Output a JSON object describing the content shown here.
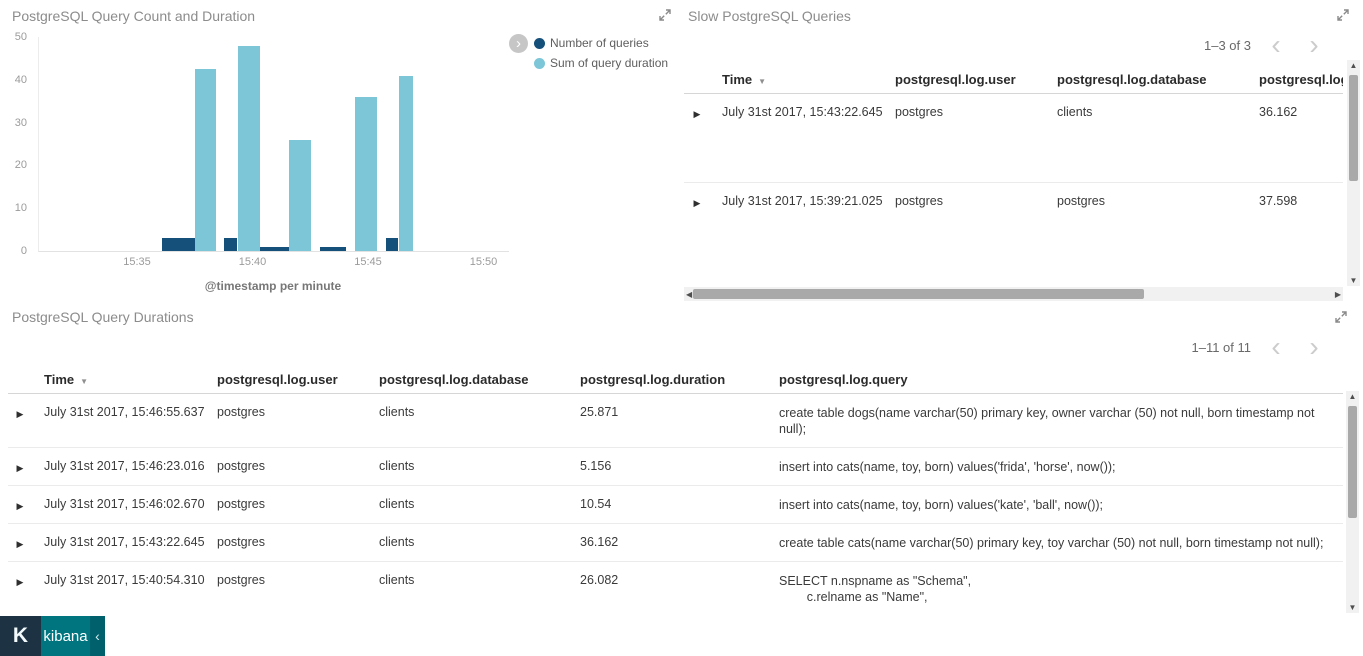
{
  "icons": {
    "legend_toggle": "›",
    "prev": "‹",
    "next": "›",
    "sort_desc": "▼",
    "row_expand": "▶",
    "scroll_up": "▲",
    "scroll_down": "▼",
    "scroll_left": "◀",
    "scroll_right": "▶",
    "collapse": "‹"
  },
  "chart_data": {
    "type": "bar",
    "title": "PostgreSQL Query Count and Duration",
    "xlabel": "@timestamp per minute",
    "x_ticks": [
      "15:35",
      "15:40",
      "15:45",
      "15:50"
    ],
    "y_ticks": [
      0,
      10,
      20,
      30,
      40,
      50
    ],
    "ylim": [
      0,
      50
    ],
    "legend_position": "right",
    "series": [
      {
        "name": "Number of queries",
        "color": "#15507a",
        "points": [
          {
            "t": "15:36",
            "v": 3
          },
          {
            "t": "15:39",
            "v": 3
          },
          {
            "t": "15:41",
            "v": 1
          },
          {
            "t": "15:43",
            "v": 1
          },
          {
            "t": "15:46",
            "v": 3
          }
        ]
      },
      {
        "name": "Sum of query duration",
        "color": "#7cc6d8",
        "points": [
          {
            "t": "15:38",
            "v": 42.5
          },
          {
            "t": "15:40",
            "v": 48
          },
          {
            "t": "15:42",
            "v": 26
          },
          {
            "t": "15:45",
            "v": 36
          },
          {
            "t": "15:46",
            "v": 41
          }
        ]
      }
    ],
    "bars": [
      {
        "s": 0,
        "m": 1.04,
        "w": 1.56,
        "v": 3
      },
      {
        "s": 1,
        "m": 2.45,
        "w": 0.95,
        "v": 42.5
      },
      {
        "s": 0,
        "m": 3.72,
        "w": 0.56,
        "v": 3
      },
      {
        "s": 1,
        "m": 4.33,
        "w": 0.95,
        "v": 48
      },
      {
        "s": 0,
        "m": 5.28,
        "w": 1.35,
        "v": 1
      },
      {
        "s": 1,
        "m": 6.53,
        "w": 0.95,
        "v": 26
      },
      {
        "s": 0,
        "m": 7.88,
        "w": 1.12,
        "v": 1
      },
      {
        "s": 1,
        "m": 9.4,
        "w": 0.95,
        "v": 36
      },
      {
        "s": 0,
        "m": 10.74,
        "w": 0.52,
        "v": 3
      },
      {
        "s": 1,
        "m": 11.28,
        "w": 0.62,
        "v": 41
      }
    ]
  },
  "panels": {
    "slow_queries": {
      "title": "Slow PostgreSQL Queries",
      "pagination": "1–3 of 3",
      "columns": {
        "time": "Time",
        "user": "postgresql.log.user",
        "database": "postgresql.log.database",
        "duration": "postgresql.log.duration"
      },
      "rows": [
        {
          "time": "July 31st 2017, 15:43:22.645",
          "user": "postgres",
          "database": "clients",
          "duration": "36.162"
        },
        {
          "time": "July 31st 2017, 15:39:21.025",
          "user": "postgres",
          "database": "postgres",
          "duration": "37.598"
        }
      ]
    },
    "durations": {
      "title": "PostgreSQL Query Durations",
      "pagination": "1–11 of 11",
      "columns": {
        "time": "Time",
        "user": "postgresql.log.user",
        "database": "postgresql.log.database",
        "duration": "postgresql.log.duration",
        "query": "postgresql.log.query"
      },
      "rows": [
        {
          "time": "July 31st 2017, 15:46:55.637",
          "user": "postgres",
          "database": "clients",
          "duration": "25.871",
          "query": "create table dogs(name varchar(50) primary key, owner varchar (50) not null, born timestamp not\nnull);"
        },
        {
          "time": "July 31st 2017, 15:46:23.016",
          "user": "postgres",
          "database": "clients",
          "duration": "5.156",
          "query": "insert into cats(name, toy, born) values('frida', 'horse', now());"
        },
        {
          "time": "July 31st 2017, 15:46:02.670",
          "user": "postgres",
          "database": "clients",
          "duration": "10.54",
          "query": "insert into cats(name, toy, born) values('kate', 'ball', now());"
        },
        {
          "time": "July 31st 2017, 15:43:22.645",
          "user": "postgres",
          "database": "clients",
          "duration": "36.162",
          "query": "create table cats(name varchar(50) primary key, toy varchar (50) not null, born timestamp not null);"
        },
        {
          "time": "July 31st 2017, 15:40:54.310",
          "user": "postgres",
          "database": "clients",
          "duration": "26.082",
          "query": "SELECT n.nspname as \"Schema\",\n        c.relname as \"Name\","
        }
      ]
    }
  },
  "branding": {
    "logo": "K",
    "app_name": "kibana"
  }
}
